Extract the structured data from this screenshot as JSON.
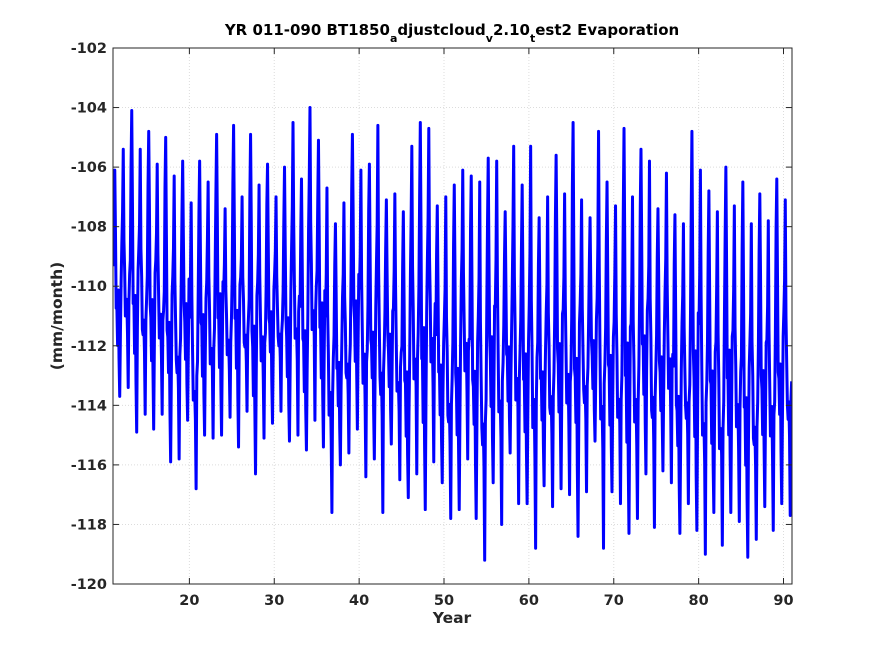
{
  "chart_data": {
    "type": "line",
    "title": {
      "parts": [
        {
          "text": "YR 011-090 BT1850",
          "sub": false
        },
        {
          "text": "a",
          "sub": true
        },
        {
          "text": "djustcloud",
          "sub": false
        },
        {
          "text": "v",
          "sub": true
        },
        {
          "text": "2.10",
          "sub": false
        },
        {
          "text": "t",
          "sub": true
        },
        {
          "text": "est2 Evaporation",
          "sub": false
        }
      ]
    },
    "xlabel": "Year",
    "ylabel": "(mm/month)",
    "xlim": [
      11,
      91
    ],
    "ylim": [
      -120,
      -102
    ],
    "xticks": [
      20,
      30,
      40,
      50,
      60,
      70,
      80,
      90
    ],
    "yticks": [
      -120,
      -118,
      -116,
      -114,
      -112,
      -110,
      -108,
      -106,
      -104,
      -102
    ],
    "grid": true,
    "series": [
      {
        "color": "#0000ff",
        "x_start": 11.0417,
        "x_step": 0.083333,
        "annual_maxima": [
          -106.1,
          -105.4,
          -104.1,
          -105.4,
          -104.8,
          -105.9,
          -105.0,
          -106.3,
          -105.8,
          -107.2,
          -105.8,
          -106.5,
          -104.9,
          -107.4,
          -104.6,
          -107.0,
          -104.9,
          -106.6,
          -105.9,
          -107.0,
          -106.0,
          -104.5,
          -106.4,
          -104.0,
          -105.1,
          -106.7,
          -107.9,
          -107.2,
          -104.9,
          -106.1,
          -105.9,
          -104.6,
          -107.1,
          -106.9,
          -107.5,
          -105.3,
          -104.5,
          -104.7,
          -107.3,
          -107.0,
          -106.6,
          -106.1,
          -106.3,
          -106.5,
          -105.7,
          -105.8,
          -107.5,
          -105.3,
          -106.6,
          -105.3,
          -107.7,
          -107.0,
          -105.6,
          -106.9,
          -104.5,
          -107.1,
          -107.7,
          -104.8,
          -106.5,
          -107.3,
          -104.7,
          -107.0,
          -105.4,
          -105.8,
          -107.4,
          -106.2,
          -107.6,
          -107.9,
          -104.8,
          -106.1,
          -106.8,
          -107.5,
          -106.0,
          -107.3,
          -106.5,
          -107.9,
          -106.9,
          -107.8,
          -106.4,
          -107.1
        ],
        "annual_minima": [
          -113.7,
          -113.4,
          -114.9,
          -114.3,
          -114.8,
          -114.3,
          -115.9,
          -115.8,
          -114.5,
          -116.8,
          -115.0,
          -115.1,
          -115.0,
          -114.4,
          -115.4,
          -114.2,
          -116.3,
          -115.1,
          -114.6,
          -114.2,
          -115.2,
          -115.0,
          -115.5,
          -114.5,
          -115.4,
          -117.6,
          -116.0,
          -115.6,
          -114.8,
          -116.4,
          -115.8,
          -117.6,
          -115.3,
          -116.5,
          -117.1,
          -116.3,
          -117.5,
          -115.9,
          -116.6,
          -117.8,
          -117.5,
          -115.8,
          -117.8,
          -119.2,
          -116.6,
          -118.0,
          -115.6,
          -117.3,
          -117.3,
          -118.8,
          -116.7,
          -117.4,
          -116.8,
          -117.0,
          -118.4,
          -116.9,
          -115.2,
          -118.8,
          -116.9,
          -117.3,
          -118.3,
          -117.8,
          -116.3,
          -118.1,
          -116.2,
          -116.6,
          -118.3,
          -117.3,
          -118.2,
          -119.0,
          -117.6,
          -118.7,
          -117.6,
          -117.9,
          -119.1,
          -118.5,
          -117.4,
          -118.2,
          -117.3,
          -117.7
        ]
      }
    ]
  }
}
